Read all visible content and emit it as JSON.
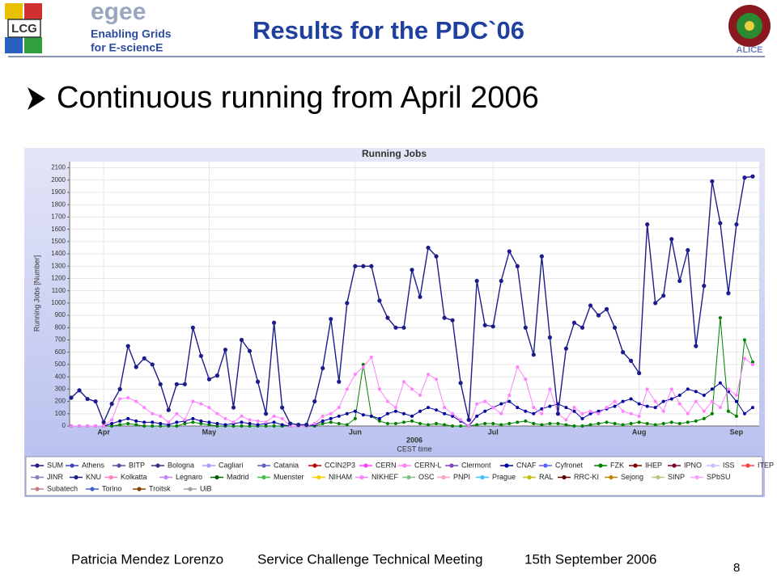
{
  "header": {
    "logo_left": "LCG",
    "logo_egee": "egee",
    "logo_egee_line1": "Enabling Grids",
    "logo_egee_line2": "for E-sciencE",
    "title": "Results for the PDC`06",
    "logo_right": "ALICE"
  },
  "bullet": "Continuous running from April 2006",
  "chart_data": {
    "type": "line",
    "title": "Running Jobs",
    "y_label": "Running Jobs [Number]",
    "x_label_year": "2006",
    "x_label": "CEST time",
    "categories": [
      null,
      null,
      null,
      null,
      "Apr",
      null,
      null,
      null,
      null,
      null,
      null,
      null,
      null,
      null,
      null,
      null,
      null,
      "May",
      null,
      null,
      null,
      null,
      null,
      null,
      null,
      null,
      null,
      null,
      null,
      null,
      null,
      null,
      null,
      null,
      null,
      "Jun",
      null,
      null,
      null,
      null,
      null,
      null,
      null,
      null,
      null,
      null,
      null,
      null,
      null,
      null,
      null,
      null,
      "Jul",
      null,
      null,
      null,
      null,
      null,
      null,
      null,
      null,
      null,
      null,
      null,
      null,
      null,
      null,
      null,
      null,
      null,
      "Aug",
      null,
      null,
      null,
      null,
      null,
      null,
      null,
      null,
      null,
      null,
      null,
      "Sep",
      null,
      null
    ],
    "ylim": [
      0,
      2150
    ],
    "yticks": [
      0,
      100,
      200,
      300,
      400,
      500,
      600,
      700,
      800,
      900,
      1000,
      1100,
      1200,
      1300,
      1400,
      1500,
      1600,
      1700,
      1800,
      1900,
      2000,
      2100
    ],
    "grid": true,
    "series": [
      {
        "name": "SUM",
        "color": "#1c1c8c",
        "values": [
          230,
          290,
          220,
          200,
          30,
          180,
          300,
          650,
          480,
          550,
          500,
          340,
          130,
          340,
          340,
          800,
          570,
          380,
          410,
          620,
          150,
          700,
          610,
          360,
          100,
          840,
          150,
          20,
          10,
          10,
          200,
          470,
          870,
          360,
          1000,
          1300,
          1300,
          1300,
          1020,
          880,
          800,
          800,
          1270,
          1050,
          1450,
          1380,
          880,
          860,
          350,
          50,
          1180,
          820,
          810,
          1180,
          1420,
          1300,
          800,
          580,
          1380,
          720,
          100,
          630,
          840,
          800,
          980,
          900,
          950,
          800,
          600,
          530,
          430,
          1640,
          1000,
          1060,
          1520,
          1180,
          1430,
          650,
          1140,
          1990,
          1650,
          1080,
          1640,
          2020,
          2030
        ]
      },
      {
        "name": "Athens",
        "color": "#4040c0"
      },
      {
        "name": "BITP",
        "color": "#5050a0"
      },
      {
        "name": "Bologna",
        "color": "#303080"
      },
      {
        "name": "Cagliari",
        "color": "#a0a0ff"
      },
      {
        "name": "Catania",
        "color": "#6060c0"
      },
      {
        "name": "CCIN2P3",
        "color": "#c00000"
      },
      {
        "name": "CERN",
        "color": "#ff40ff"
      },
      {
        "name": "CERN-L",
        "color": "#ff80ff",
        "values": [
          0,
          0,
          0,
          0,
          0,
          50,
          220,
          230,
          200,
          150,
          100,
          80,
          30,
          100,
          50,
          200,
          180,
          150,
          100,
          60,
          30,
          80,
          50,
          40,
          30,
          80,
          60,
          0,
          0,
          0,
          20,
          80,
          100,
          150,
          300,
          420,
          480,
          560,
          300,
          200,
          150,
          360,
          300,
          250,
          420,
          380,
          150,
          100,
          50,
          0,
          180,
          200,
          150,
          100,
          250,
          480,
          380,
          150,
          100,
          300,
          100,
          50,
          150,
          100,
          120,
          100,
          150,
          200,
          120,
          100,
          80,
          300,
          200,
          120,
          300,
          180,
          100,
          200,
          120,
          200,
          150,
          300,
          250,
          550,
          500
        ]
      },
      {
        "name": "Clermont",
        "color": "#8040c0"
      },
      {
        "name": "CNAF",
        "color": "#0000a0",
        "values": [
          0,
          0,
          0,
          0,
          0,
          20,
          40,
          60,
          40,
          30,
          30,
          20,
          10,
          30,
          40,
          60,
          40,
          30,
          20,
          10,
          20,
          30,
          20,
          10,
          20,
          30,
          10,
          0,
          0,
          0,
          10,
          40,
          60,
          80,
          100,
          120,
          90,
          80,
          60,
          100,
          120,
          100,
          80,
          120,
          150,
          130,
          100,
          80,
          40,
          0,
          80,
          120,
          150,
          180,
          200,
          150,
          120,
          100,
          140,
          160,
          180,
          150,
          120,
          60,
          100,
          120,
          140,
          160,
          200,
          220,
          180,
          160,
          150,
          200,
          220,
          250,
          300,
          280,
          250,
          300,
          350,
          280,
          200,
          100,
          150
        ]
      },
      {
        "name": "Cyfronet",
        "color": "#6060ff"
      },
      {
        "name": "FZK",
        "color": "#008000",
        "values": [
          0,
          0,
          0,
          0,
          0,
          0,
          10,
          20,
          10,
          0,
          0,
          0,
          0,
          0,
          20,
          30,
          20,
          10,
          0,
          0,
          0,
          0,
          0,
          0,
          0,
          0,
          0,
          0,
          0,
          0,
          0,
          20,
          30,
          20,
          10,
          60,
          500,
          80,
          40,
          20,
          20,
          30,
          40,
          20,
          10,
          20,
          10,
          0,
          0,
          0,
          10,
          20,
          20,
          10,
          20,
          30,
          40,
          20,
          10,
          20,
          20,
          10,
          0,
          0,
          10,
          20,
          30,
          20,
          10,
          20,
          30,
          20,
          10,
          20,
          30,
          20,
          30,
          40,
          60,
          100,
          880,
          120,
          80,
          700,
          520
        ]
      },
      {
        "name": "IHEP",
        "color": "#800000"
      },
      {
        "name": "IPNO",
        "color": "#800040"
      },
      {
        "name": "ISS",
        "color": "#c0c0ff"
      },
      {
        "name": "ITEP",
        "color": "#ff4040"
      },
      {
        "name": "JINR",
        "color": "#8080c0"
      },
      {
        "name": "KNU",
        "color": "#202080"
      },
      {
        "name": "Kolkatta",
        "color": "#ff80c0"
      },
      {
        "name": "Legnaro",
        "color": "#c080ff"
      },
      {
        "name": "Madrid",
        "color": "#006000"
      },
      {
        "name": "Muenster",
        "color": "#40c040"
      },
      {
        "name": "NIHAM",
        "color": "#ffcc00"
      },
      {
        "name": "NIKHEF",
        "color": "#ff80ff"
      },
      {
        "name": "OSC",
        "color": "#80c080"
      },
      {
        "name": "PNPI",
        "color": "#ffa0c0"
      },
      {
        "name": "Prague",
        "color": "#40c0ff"
      },
      {
        "name": "RAL",
        "color": "#c0c000"
      },
      {
        "name": "RRC-KI",
        "color": "#600000"
      },
      {
        "name": "Sejong",
        "color": "#c08000"
      },
      {
        "name": "SINP",
        "color": "#c0c080"
      },
      {
        "name": "SPbSU",
        "color": "#ffa0ff"
      },
      {
        "name": "Subatech",
        "color": "#c08080"
      },
      {
        "name": "Torino",
        "color": "#4060c0"
      },
      {
        "name": "Troitsk",
        "color": "#804000"
      },
      {
        "name": "UiB",
        "color": "#a0a0a0"
      }
    ]
  },
  "footer": {
    "author": "Patricia Mendez Lorenzo",
    "event": "Service Challenge Technical Meeting",
    "date": "15th September 2006",
    "page": 8
  }
}
